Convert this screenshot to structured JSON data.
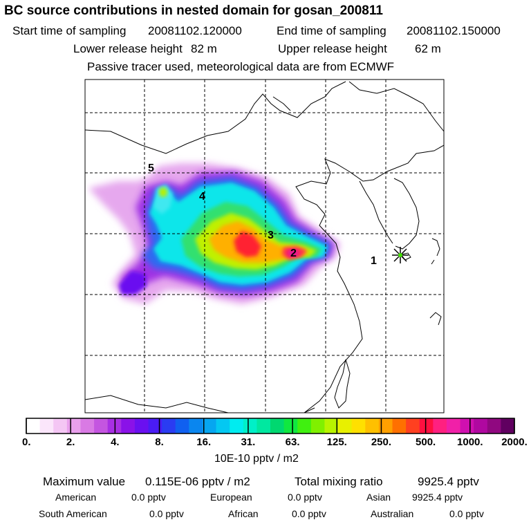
{
  "header": {
    "title": "BC  source contributions in nested domain for gosan_200811",
    "start_label": "Start time of sampling",
    "start_value": "20081102.120000",
    "end_label": "End time of sampling",
    "end_value": "20081102.150000",
    "lower_label": "Lower release height",
    "lower_value": "82 m",
    "upper_label": "Upper release height",
    "upper_value": "62 m",
    "note": "Passive tracer used, meteorological data are from ECMWF"
  },
  "map": {
    "markers": [
      "1",
      "2",
      "3",
      "4",
      "5"
    ],
    "receptor_icon": "star-receptor-icon"
  },
  "colorbar": {
    "ticks": [
      "0.",
      "2.",
      "4.",
      "8.",
      "16.",
      "31.",
      "63.",
      "125.",
      "250.",
      "500.",
      "1000.",
      "2000."
    ],
    "unit": "10E-10 pptv / m2",
    "colors": [
      "#ffffff",
      "#fbe6fb",
      "#f4c6f4",
      "#e9a0ec",
      "#d97ae4",
      "#c455e0",
      "#a82fe3",
      "#8a12e8",
      "#6a10f0",
      "#4a1cf5",
      "#2a3cf2",
      "#1060f0",
      "#0a86ef",
      "#06a6f0",
      "#04c8f2",
      "#00ecf0",
      "#00f0c8",
      "#00e8a0",
      "#00d870",
      "#10e840",
      "#40f010",
      "#80f000",
      "#b8f400",
      "#e8f000",
      "#ffe000",
      "#ffc000",
      "#ffa000",
      "#ff7000",
      "#ff4020",
      "#ff1040",
      "#ff2080",
      "#f020a8",
      "#d010b0",
      "#b008a0",
      "#900880",
      "#600060"
    ]
  },
  "stats": {
    "max_label": "Maximum value",
    "max_value": "0.115E-06 pptv / m2",
    "total_label": "Total mixing ratio",
    "total_value": "9925.4 pptv",
    "regions": [
      {
        "name": "American",
        "value": "0.0 pptv"
      },
      {
        "name": "European",
        "value": "0.0 pptv"
      },
      {
        "name": "Asian",
        "value": "9925.4 pptv"
      },
      {
        "name": "South American",
        "value": "0.0 pptv"
      },
      {
        "name": "African",
        "value": "0.0 pptv"
      },
      {
        "name": "Australian",
        "value": "0.0 pptv"
      }
    ]
  }
}
